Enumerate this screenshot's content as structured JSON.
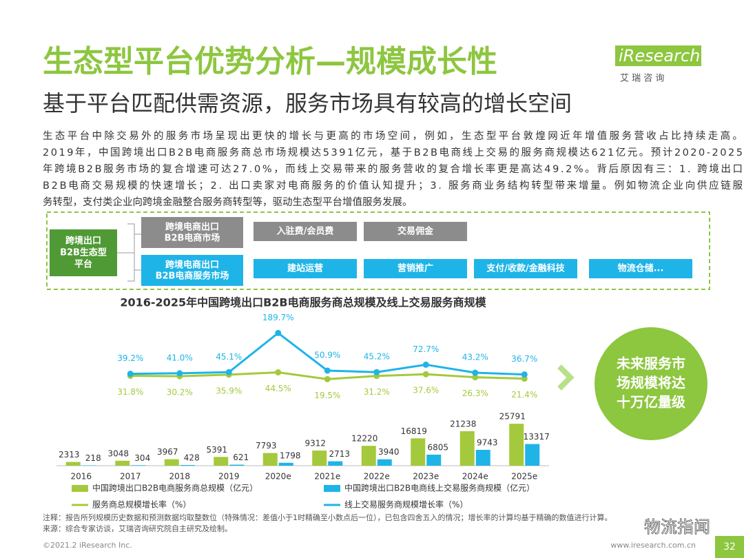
{
  "header": {
    "title": "生态型平台优势分析—规模成长性",
    "subtitle": "基于平台匹配供需资源，服务市场具有较高的增长空间",
    "logo": "iResearch",
    "logo_cn": "艾 瑞 咨 询"
  },
  "body": {
    "lines": [
      "生态平台中除交易外的服务市场呈现出更快的增长与更高的市场空间，例如，生态型平台敦煌网近年增值服务营收占比持续走高。",
      "2019年，中国跨境出口B2B电商服务商总市场规模达5391亿元，基于B2B电商线上交易的服务商规模达621亿元。预计2020-2025",
      "年跨境B2B服务市场的复合增速可达27.0%，而线上交易带来的服务营收的复合增长率更是高达49.2%。背后原因有三：1. 跨境出口",
      "B2B电商交易规模的快速增长；2. 出口卖家对电商服务的价值认知提升；3. 服务商业务结构转型带来增量。例如物流企业向供应链服",
      "务转型，支付类企业向跨境金融整合服务商转型等，驱动生态型平台增值服务发展。"
    ]
  },
  "diagram": {
    "platform": [
      "跨境出口",
      "B2B生态型",
      "平台"
    ],
    "trade_market": [
      "跨境电商出口",
      "B2B电商市场"
    ],
    "service_market": [
      "跨境电商出口",
      "B2B电商服务市场"
    ],
    "trade_items": [
      "入驻费/会员费",
      "交易佣金"
    ],
    "service_items": [
      "建站运营",
      "营销推广",
      "支付/收款/金融科技",
      "物流仓储..."
    ]
  },
  "callout": [
    "未来服务市",
    "场规模将达",
    "十万亿量级"
  ],
  "chart_data": {
    "type": "bar",
    "title": "2016-2025年中国跨境出口B2B电商服务商总规模及线上交易服务商规模",
    "categories": [
      "2016",
      "2017",
      "2018",
      "2019",
      "2020e",
      "2021e",
      "2022e",
      "2023e",
      "2024e",
      "2025e"
    ],
    "ylim": [
      0,
      100000
    ],
    "y2lim": [
      -300,
      300
    ],
    "series": [
      {
        "name": "中国跨境出口B2B电商服务商总规模（亿元）",
        "color": "#a4c93c",
        "values": [
          2313,
          3048,
          3967,
          5391,
          7793,
          9312,
          12220,
          16819,
          21238,
          25791
        ]
      },
      {
        "name": "中国跨境出口B2B电商线上交易服务商规模（亿元）",
        "color": "#1eb4e8",
        "values": [
          218,
          304,
          428,
          621,
          1798,
          2713,
          3940,
          6805,
          9743,
          13317
        ]
      },
      {
        "name": "服务商总规模增长率（%）",
        "type": "line",
        "axis": "y2",
        "color": "#a4c93c",
        "values": [
          null,
          31.8,
          30.2,
          35.9,
          44.5,
          19.5,
          31.2,
          37.6,
          26.3,
          21.4
        ],
        "value_labels": [
          null,
          "31.8%",
          "30.2%",
          "35.9%",
          "44.5%",
          "19.5%",
          "31.2%",
          "37.6%",
          "26.3%",
          "21.4%"
        ]
      },
      {
        "name": "线上交易服务商规模增长率（%）",
        "type": "line",
        "axis": "y2",
        "color": "#1eb4e8",
        "values": [
          null,
          39.2,
          41.0,
          45.1,
          189.7,
          50.9,
          45.2,
          72.7,
          43.2,
          36.7
        ],
        "value_labels": [
          null,
          "39.2%",
          "41.0%",
          "45.1%",
          "189.7%",
          "50.9%",
          "45.2%",
          "72.7%",
          "43.2%",
          "36.7%"
        ]
      }
    ]
  },
  "footer": {
    "note": "注释：报告所列规模历史数据和预测数据均取整数位（特殊情况：差值小于1时精确至小数点后一位），已包含四舍五入的情况；增长率的计算均基于精确的数值进行计算。",
    "source": "来源：综合专家访谈，艾瑞咨询研究院自主研究及绘制。",
    "copyright": "©2021.2 iResearch Inc.",
    "website": "www.iresearch.com.cn",
    "page": "32",
    "watermark": "物流指闻"
  }
}
